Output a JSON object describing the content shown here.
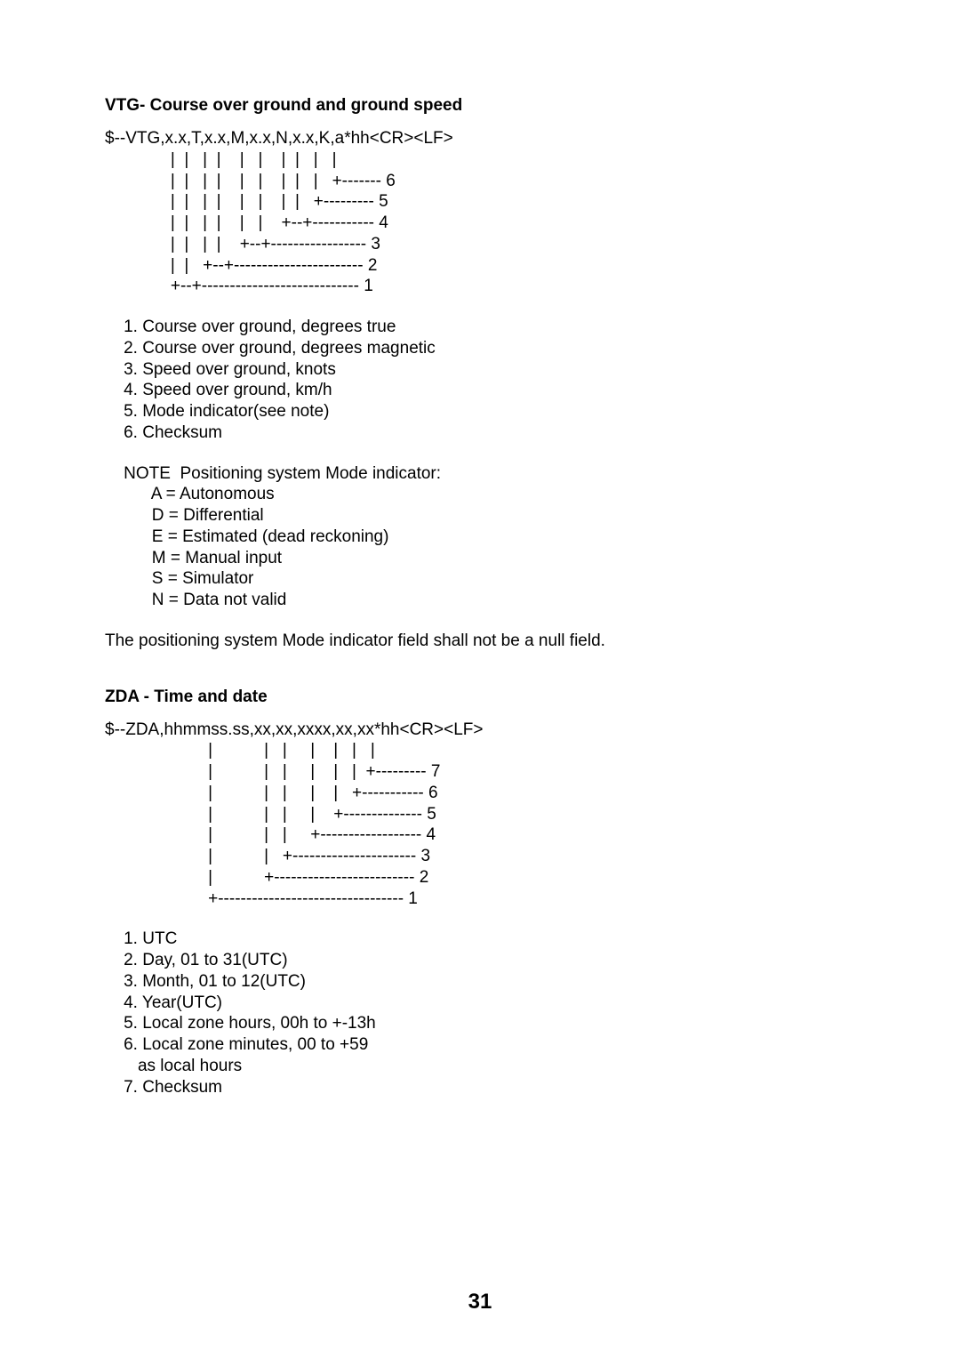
{
  "page_number": "31",
  "vtg": {
    "heading": "VTG- Course over ground and ground speed",
    "sentence": "$--VTG,x.x,T,x.x,M,x.x,N,x.x,K,a*hh<CR><LF>",
    "diagram": "              |  |   |  |    |   |    |  |   |   |\n              |  |   |  |    |   |    |  |   |   +------- 6\n              |  |   |  |    |   |    |  |   +--------- 5\n              |  |   |  |    |   |    +--+----------- 4\n              |  |   |  |    +--+----------------- 3\n              |  |   +--+----------------------- 2\n              +--+---------------------------- 1",
    "fields": [
      "    1. Course over ground, degrees true",
      "    2. Course over ground, degrees magnetic",
      "    3. Speed over ground, knots",
      "    4. Speed over ground, km/h",
      "    5. Mode indicator(see note)",
      "    6. Checksum"
    ],
    "note_title": "    NOTE  Positioning system Mode indicator:",
    "note_items": [
      "          A = Autonomous",
      "          D = Differential",
      "          E = Estimated (dead reckoning)",
      "          M = Manual input",
      "          S = Simulator",
      "          N = Data not valid"
    ],
    "footer": "   The positioning system Mode indicator field shall not be a null field."
  },
  "zda": {
    "heading": "ZDA - Time and date",
    "sentence": "$--ZDA,hhmmss.ss,xx,xx,xxxx,xx,xx*hh<CR><LF>",
    "diagram": "                      |           |   |     |    |   |   |\n                      |           |   |     |    |   |  +--------- 7\n                      |           |   |     |    |   +----------- 6\n                      |           |   |     |    +-------------- 5\n                      |           |   |     +------------------ 4\n                      |           |   +---------------------- 3\n                      |           +------------------------- 2\n                      +--------------------------------- 1",
    "fields": [
      "    1. UTC",
      "    2. Day, 01 to 31(UTC)",
      "    3. Month, 01 to 12(UTC)",
      "    4. Year(UTC)",
      "    5. Local zone hours, 00h to +-13h",
      "    6. Local zone minutes, 00 to +59",
      "       as local hours",
      "    7. Checksum"
    ]
  }
}
